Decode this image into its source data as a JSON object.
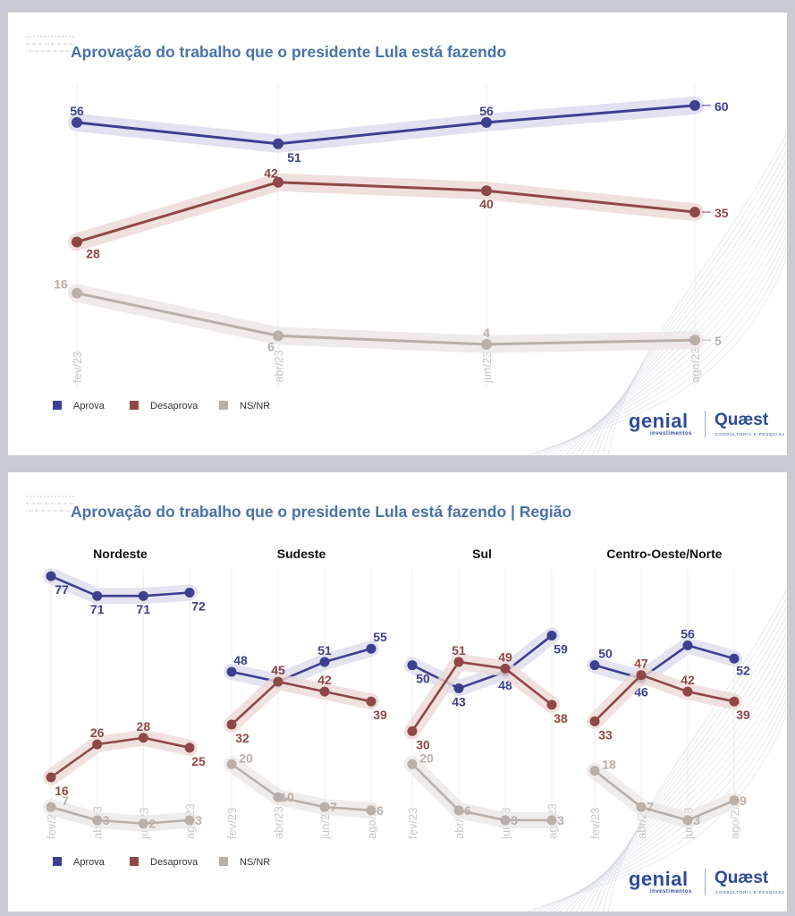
{
  "chart_data": [
    {
      "type": "line",
      "title": "Aprovação do trabalho que o presidente Lula está fazendo",
      "categories": [
        "fev/23",
        "abr/23",
        "jun/23",
        "ago/23"
      ],
      "ylim": [
        0,
        65
      ],
      "grid": true,
      "legend_position": "bottom-left",
      "series": [
        {
          "name": "Aprova",
          "color": "#3e3f8f",
          "values": [
            56,
            51,
            56,
            60
          ]
        },
        {
          "name": "Desaprova",
          "color": "#8f4848",
          "values": [
            28,
            42,
            40,
            35
          ]
        },
        {
          "name": "NS/NR",
          "color": "#b9b0aa",
          "values": [
            16,
            6,
            4,
            5
          ]
        }
      ]
    },
    {
      "type": "line",
      "title": "Aprovação do trabalho que o presidente Lula está fazendo | Região",
      "categories": [
        "fev/23",
        "abr/23",
        "jun/23",
        "ago/23"
      ],
      "ylim": [
        0,
        80
      ],
      "grid": true,
      "legend_position": "bottom-left",
      "panels": [
        {
          "name": "Nordeste",
          "series": [
            {
              "name": "Aprova",
              "values": [
                77,
                71,
                71,
                72
              ]
            },
            {
              "name": "Desaprova",
              "values": [
                16,
                26,
                28,
                25
              ]
            },
            {
              "name": "NS/NR",
              "values": [
                7,
                3,
                2,
                3
              ]
            }
          ]
        },
        {
          "name": "Sudeste",
          "series": [
            {
              "name": "Aprova",
              "values": [
                48,
                45,
                51,
                55
              ]
            },
            {
              "name": "Desaprova",
              "values": [
                32,
                45,
                42,
                39
              ]
            },
            {
              "name": "NS/NR",
              "values": [
                20,
                10,
                7,
                6
              ]
            }
          ]
        },
        {
          "name": "Sul",
          "series": [
            {
              "name": "Aprova",
              "values": [
                50,
                43,
                48,
                59
              ]
            },
            {
              "name": "Desaprova",
              "values": [
                30,
                51,
                49,
                38
              ]
            },
            {
              "name": "NS/NR",
              "values": [
                20,
                6,
                3,
                3
              ]
            }
          ]
        },
        {
          "name": "Centro-Oeste/Norte",
          "series": [
            {
              "name": "Aprova",
              "values": [
                50,
                46,
                56,
                52
              ]
            },
            {
              "name": "Desaprova",
              "values": [
                33,
                47,
                42,
                39
              ]
            },
            {
              "name": "NS/NR",
              "values": [
                18,
                7,
                3,
                9
              ]
            }
          ]
        }
      ]
    }
  ],
  "legend": {
    "items": [
      {
        "label": "Aprova",
        "color": "#3e3f8f"
      },
      {
        "label": "Desaprova",
        "color": "#8f4848"
      },
      {
        "label": "NS/NR",
        "color": "#b9b0aa"
      }
    ]
  },
  "logos": {
    "genial": "genial",
    "genial_sub": "investimentos",
    "quaest": "Quæst",
    "quaest_sub": "CONSULTORIA E PESQUISA"
  }
}
